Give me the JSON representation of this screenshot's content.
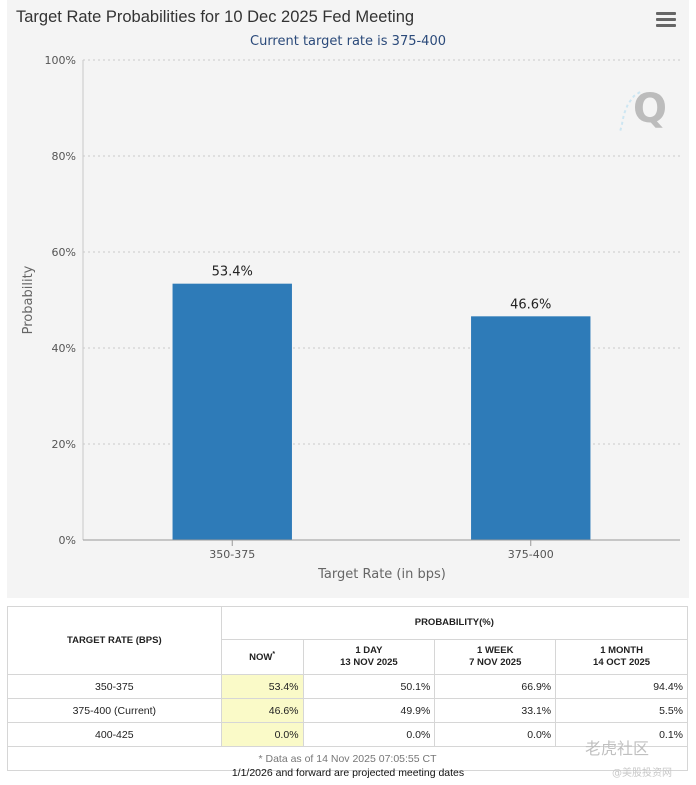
{
  "chart_data": {
    "type": "bar",
    "title": "Target Rate Probabilities for 10 Dec 2025 Fed Meeting",
    "subtitle": "Current target rate is 375-400",
    "xlabel": "Target Rate (in bps)",
    "ylabel": "Probability",
    "categories": [
      "350-375",
      "375-400"
    ],
    "values": [
      53.4,
      46.6
    ],
    "data_labels": [
      "53.4%",
      "46.6%"
    ],
    "ylim": [
      0,
      100
    ],
    "yticks": [
      0,
      20,
      40,
      60,
      80,
      100
    ],
    "ytick_labels": [
      "0%",
      "20%",
      "40%",
      "60%",
      "80%",
      "100%"
    ],
    "grid": true,
    "bar_color": "#2e7bb8"
  },
  "logo_glyph": "Q",
  "table": {
    "rate_header": "TARGET RATE (BPS)",
    "prob_header": "PROBABILITY(%)",
    "columns": [
      {
        "line1": "NOW",
        "marker": "*",
        "line2": ""
      },
      {
        "line1": "1 DAY",
        "line2": "13 NOV 2025"
      },
      {
        "line1": "1 WEEK",
        "line2": "7 NOV 2025"
      },
      {
        "line1": "1 MONTH",
        "line2": "14 OCT 2025"
      }
    ],
    "rows": [
      {
        "rate": "350-375",
        "now": "53.4%",
        "day": "50.1%",
        "week": "66.9%",
        "month": "94.4%"
      },
      {
        "rate": "375-400 (Current)",
        "now": "46.6%",
        "day": "49.9%",
        "week": "33.1%",
        "month": "5.5%"
      },
      {
        "rate": "400-425",
        "now": "0.0%",
        "day": "0.0%",
        "week": "0.0%",
        "month": "0.1%"
      }
    ],
    "footnote": "* Data as of 14 Nov 2025 07:05:55 CT"
  },
  "bottom_note": "1/1/2026 and forward are projected meeting dates",
  "watermark": {
    "main": "老虎社区",
    "sub": "@美股投资网"
  }
}
